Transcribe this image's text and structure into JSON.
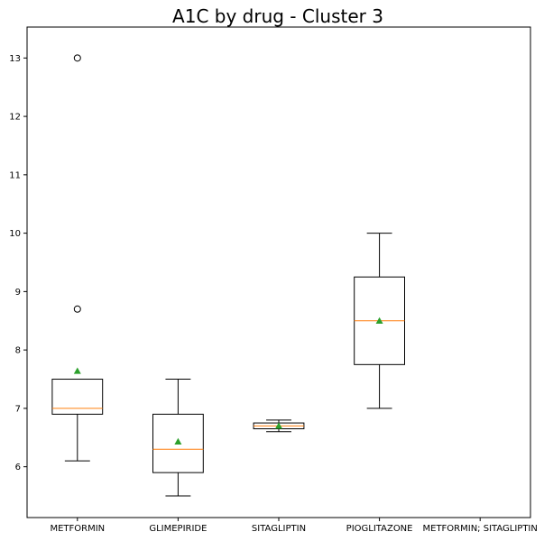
{
  "chart_data": {
    "type": "box",
    "title": "A1C by drug - Cluster 3",
    "xlabel": "",
    "ylabel": "",
    "ylim": [
      5.13,
      13.53
    ],
    "yticks": [
      6,
      7,
      8,
      9,
      10,
      11,
      12,
      13
    ],
    "categories": [
      "METFORMIN",
      "GLIMEPIRIDE",
      "SITAGLIPTIN",
      "PIOGLITAZONE",
      "METFORMIN; SITAGLIPTIN"
    ],
    "boxes": [
      {
        "category": "METFORMIN",
        "whisker_low": 6.1,
        "q1": 6.9,
        "median": 7.0,
        "q3": 7.5,
        "whisker_high": 7.5,
        "mean": 7.64,
        "outliers": [
          8.7,
          13.0
        ]
      },
      {
        "category": "GLIMEPIRIDE",
        "whisker_low": 5.5,
        "q1": 5.9,
        "median": 6.3,
        "q3": 6.9,
        "whisker_high": 7.5,
        "mean": 6.43,
        "outliers": []
      },
      {
        "category": "SITAGLIPTIN",
        "whisker_low": 6.6,
        "q1": 6.65,
        "median": 6.7,
        "q3": 6.75,
        "whisker_high": 6.8,
        "mean": 6.7,
        "outliers": []
      },
      {
        "category": "PIOGLITAZONE",
        "whisker_low": 7.0,
        "q1": 7.75,
        "median": 8.5,
        "q3": 9.25,
        "whisker_high": 10.0,
        "mean": 8.5,
        "outliers": []
      },
      {
        "category": "METFORMIN; SITAGLIPTIN",
        "empty": true
      }
    ],
    "grid": false,
    "colors": {
      "box": "#000000",
      "median": "#ff7f0e",
      "mean": "#2ca02c"
    }
  }
}
